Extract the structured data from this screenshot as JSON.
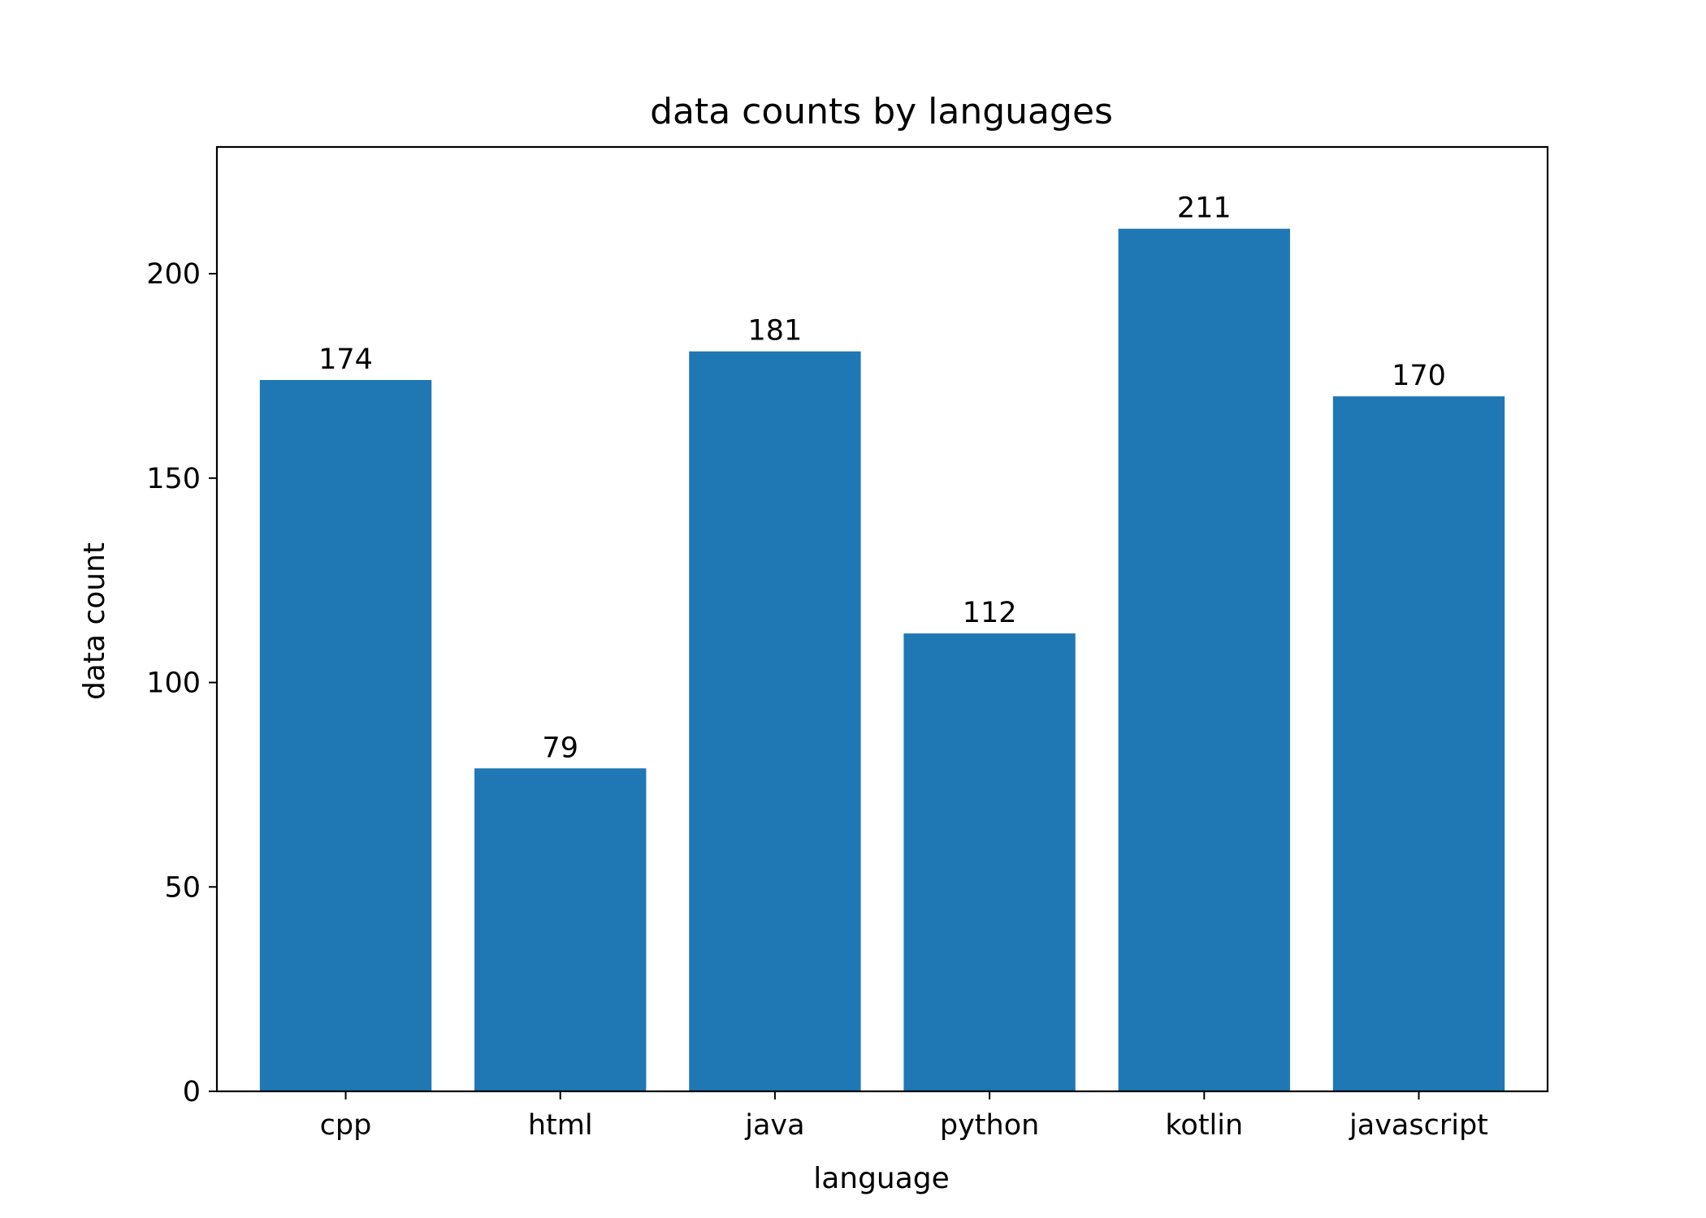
{
  "chart_data": {
    "type": "bar",
    "title": "data counts by languages",
    "xlabel": "language",
    "ylabel": "data count",
    "categories": [
      "cpp",
      "html",
      "java",
      "python",
      "kotlin",
      "javascript"
    ],
    "values": [
      174,
      79,
      181,
      112,
      211,
      170
    ],
    "ylim": [
      0,
      231
    ],
    "yticks": [
      0,
      50,
      100,
      150,
      200
    ],
    "grid": false,
    "legend": "none",
    "bar_color": "#1f77b4",
    "show_value_labels": true
  }
}
